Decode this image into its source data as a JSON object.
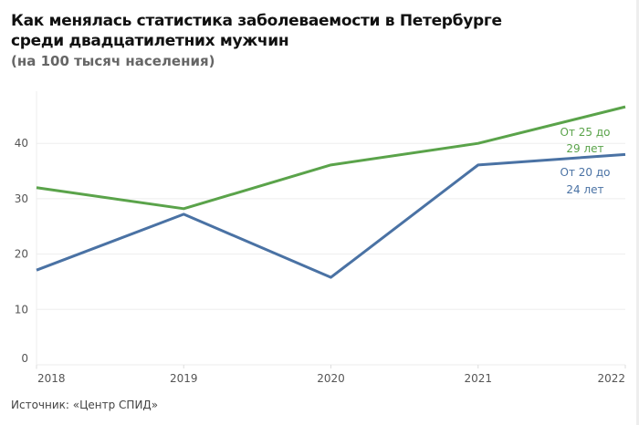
{
  "chart_data": {
    "type": "line",
    "title": "Как менялась статистика заболеваемости в Петербурге среди двадцатилетних мужчин",
    "subtitle": "(на 100 тысяч населения)",
    "xlabel": "",
    "ylabel": "",
    "x": [
      "2018",
      "2019",
      "2020",
      "2021",
      "2022"
    ],
    "yticks": [
      "0",
      "10",
      "20",
      "30",
      "40"
    ],
    "ylim": [
      0,
      49.4
    ],
    "grid": true,
    "series": [
      {
        "name": "От 25 до 29 лет",
        "label_lines": [
          "От 25 до",
          "29 лет"
        ],
        "color": "#5aa34a",
        "values": [
          32.0,
          28.2,
          36.1,
          40.0,
          46.6
        ]
      },
      {
        "name": "От 20 до 24 лет",
        "label_lines": [
          "От 20 до",
          "24 лет"
        ],
        "color": "#4a72a4",
        "values": [
          17.1,
          27.2,
          15.8,
          36.1,
          38.0
        ]
      }
    ],
    "source": "Источник: «Центр СПИД»"
  }
}
